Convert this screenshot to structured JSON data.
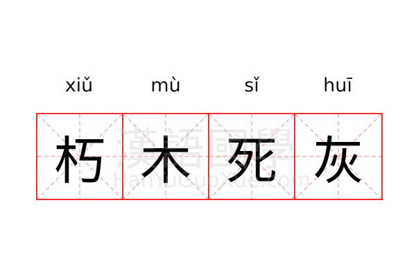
{
  "idiom": {
    "pinyin": [
      "xiǔ",
      "mù",
      "sǐ",
      "huī"
    ],
    "characters": [
      "朽",
      "木",
      "死",
      "灰"
    ]
  },
  "watermark": {
    "chinese": "漢語國學",
    "latin": "HanYuGuoXue.com"
  },
  "colors": {
    "border": "#f03030",
    "guide": "#f8a0a0"
  }
}
